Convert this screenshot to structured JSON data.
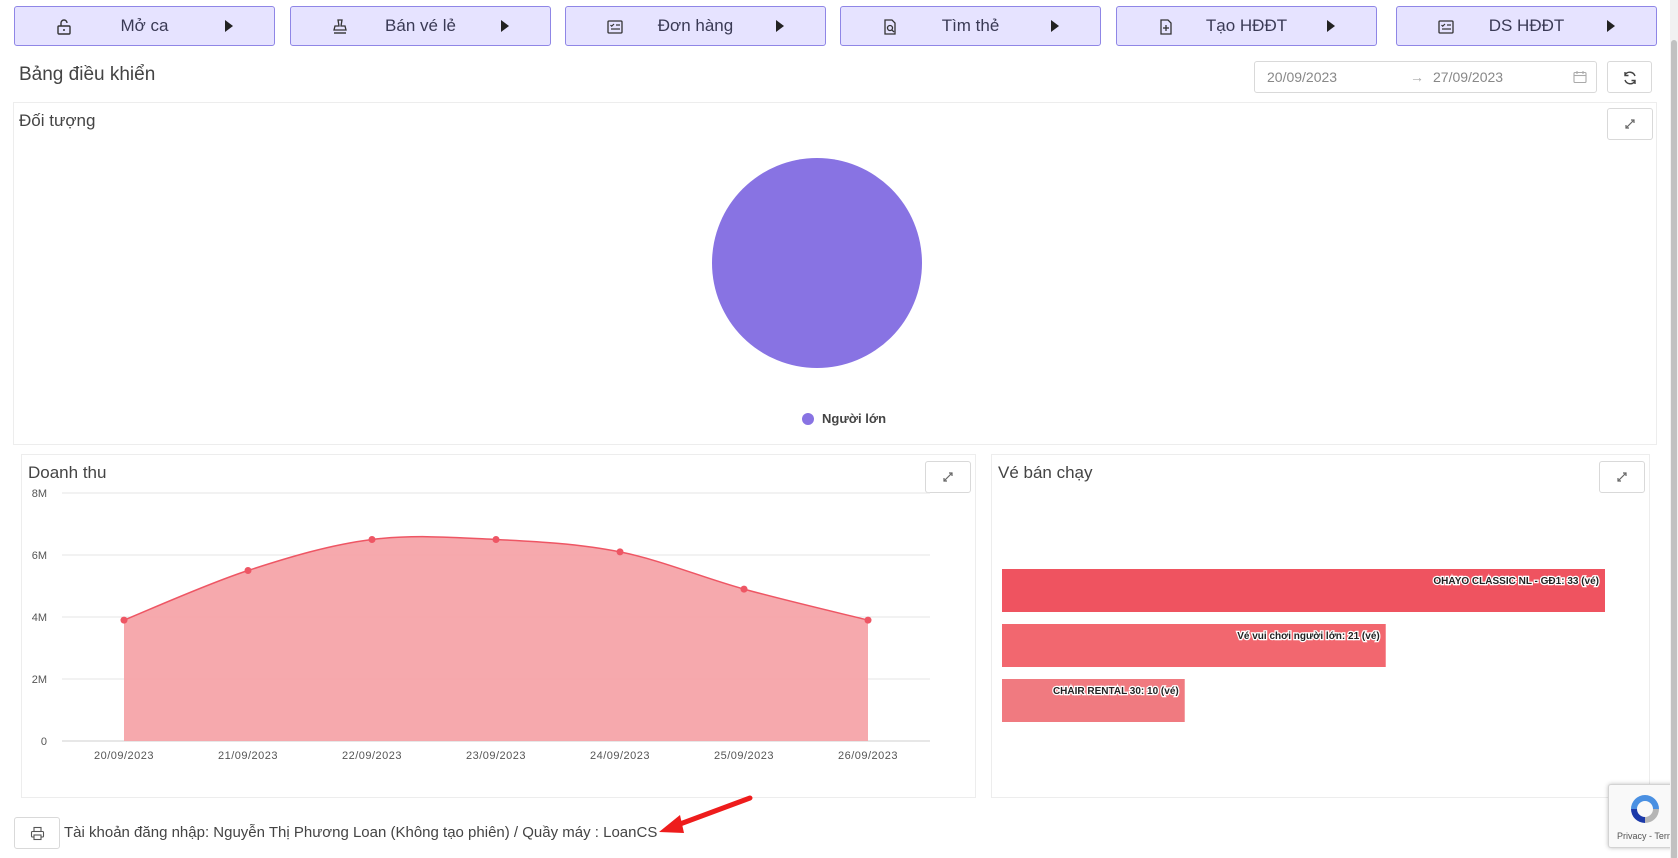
{
  "toolbar": {
    "buttons": [
      {
        "label": "Mở ca",
        "icon": "unlock-icon"
      },
      {
        "label": "Bán vé lẻ",
        "icon": "stamp-icon"
      },
      {
        "label": "Đơn hàng",
        "icon": "checklist-icon"
      },
      {
        "label": "Tìm thẻ",
        "icon": "search-file-icon"
      },
      {
        "label": "Tạo HĐĐT",
        "icon": "add-file-icon"
      },
      {
        "label": "DS HĐĐT",
        "icon": "checklist-icon"
      }
    ]
  },
  "dashboard": {
    "title": "Bảng điều khiển",
    "date_from": "20/09/2023",
    "date_to": "27/09/2023",
    "date_separator": "→"
  },
  "panels": {
    "audience_title": "Đối tượng",
    "revenue_title": "Doanh thu",
    "bestseller_title": "Vé bán chạy"
  },
  "colors": {
    "accent": "#8873e3",
    "button_bg": "#e6e3ff",
    "revenue_line": "#ee5664",
    "revenue_fill": "#f6a4a9",
    "bar_1": "#ef5360",
    "bar_2": "#f2676f",
    "bar_3": "#f07a80"
  },
  "chart_data": [
    {
      "type": "pie",
      "title": "Đối tượng",
      "labels": [
        "Người lớn"
      ],
      "values": [
        100
      ],
      "colors": [
        "#8873e3"
      ],
      "legend": "bottom"
    },
    {
      "type": "area",
      "title": "Doanh thu",
      "x": [
        "20/09/2023",
        "21/09/2023",
        "22/09/2023",
        "23/09/2023",
        "24/09/2023",
        "25/09/2023",
        "26/09/2023"
      ],
      "series": [
        {
          "values": [
            3900000,
            5500000,
            6500000,
            6500000,
            6100000,
            4900000,
            3900000
          ]
        }
      ],
      "ylim": [
        0,
        8000000
      ],
      "yticks": [
        "0",
        "2M",
        "4M",
        "6M",
        "8M"
      ],
      "grid": true
    },
    {
      "type": "bar",
      "orientation": "horizontal",
      "title": "Vé bán chạy",
      "categories": [
        "OHAYO CLASSIC NL - GĐ1",
        "Vé vui chơi người lớn",
        "CHAIR RENTAL 30"
      ],
      "values": [
        33,
        21,
        10
      ],
      "data_labels": [
        "OHAYO CLASSIC NL - GĐ1: 33 (vé)",
        "Vé vui chơi người lớn: 21 (vé)",
        "CHAIR RENTAL 30: 10 (vé)"
      ]
    }
  ],
  "footer": {
    "account_text": "Tài khoản đăng nhập: Nguyễn Thị Phương Loan (Không tạo phiên) / Quầy máy : LoanCS"
  },
  "recaptcha": {
    "text": "Privacy - Terms"
  }
}
